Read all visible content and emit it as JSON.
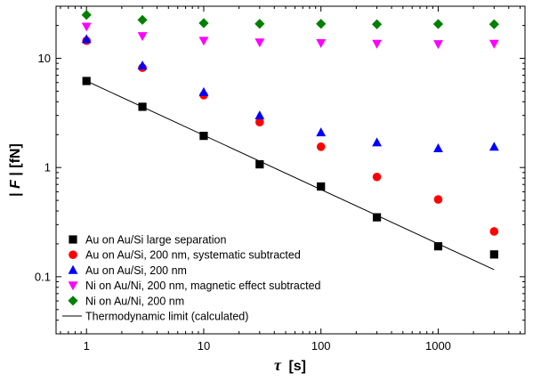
{
  "chart_data": {
    "type": "scatter",
    "x_scale": "log",
    "y_scale": "log",
    "xlim": [
      0.55,
      5500
    ],
    "ylim": [
      0.03,
      30
    ],
    "xlabel_symbol": "τ",
    "xlabel_unit": "[s]",
    "ylabel_prefix": "|",
    "ylabel_symbol": "F",
    "ylabel_suffix": "| [fN]",
    "x_ticks": [
      {
        "value": 1,
        "label": "1"
      },
      {
        "value": 10,
        "label": "10"
      },
      {
        "value": 100,
        "label": "100"
      },
      {
        "value": 1000,
        "label": "1000"
      }
    ],
    "y_ticks": [
      {
        "value": 0.1,
        "label": "0.1"
      },
      {
        "value": 1,
        "label": "1"
      },
      {
        "value": 10,
        "label": "10"
      }
    ],
    "grid": false,
    "legend_position": "bottom-left",
    "series": [
      {
        "name": "Au on Au/Si large separation",
        "marker": "square",
        "color": "#000000",
        "x": [
          1,
          3,
          10,
          30,
          100,
          300,
          1000,
          3000
        ],
        "y": [
          6.2,
          3.6,
          1.95,
          1.07,
          0.67,
          0.35,
          0.19,
          0.16
        ]
      },
      {
        "name": "Au on Au/Si, 200 nm, systematic subtracted",
        "marker": "circle",
        "color": "#ff0000",
        "x": [
          1,
          3,
          10,
          30,
          100,
          300,
          1000,
          3000
        ],
        "y": [
          14.5,
          8.2,
          4.6,
          2.6,
          1.55,
          0.82,
          0.51,
          0.26
        ]
      },
      {
        "name": "Au on Au/Si, 200 nm",
        "marker": "triangle-up",
        "color": "#0000ff",
        "x": [
          1,
          3,
          10,
          30,
          100,
          300,
          1000,
          3000
        ],
        "y": [
          15.0,
          8.6,
          4.9,
          3.0,
          2.1,
          1.7,
          1.5,
          1.55
        ]
      },
      {
        "name": "Ni on Au/Ni, 200 nm, magnetic effect subtracted",
        "marker": "triangle-down",
        "color": "#ff00ff",
        "x": [
          1,
          3,
          10,
          30,
          100,
          300,
          1000,
          3000
        ],
        "y": [
          19.5,
          16.0,
          14.5,
          14.0,
          13.8,
          13.6,
          13.5,
          13.6
        ]
      },
      {
        "name": "Ni on Au/Ni, 200 nm",
        "marker": "diamond",
        "color": "#008000",
        "x": [
          1,
          3,
          10,
          30,
          100,
          300,
          1000,
          3000
        ],
        "y": [
          25.0,
          22.5,
          21.0,
          20.7,
          20.7,
          20.5,
          20.6,
          20.5
        ]
      }
    ],
    "lines": [
      {
        "name": "Thermodynamic limit (calculated)",
        "color": "#000000",
        "x": [
          1,
          3000
        ],
        "y": [
          6.2,
          0.116
        ]
      }
    ]
  }
}
